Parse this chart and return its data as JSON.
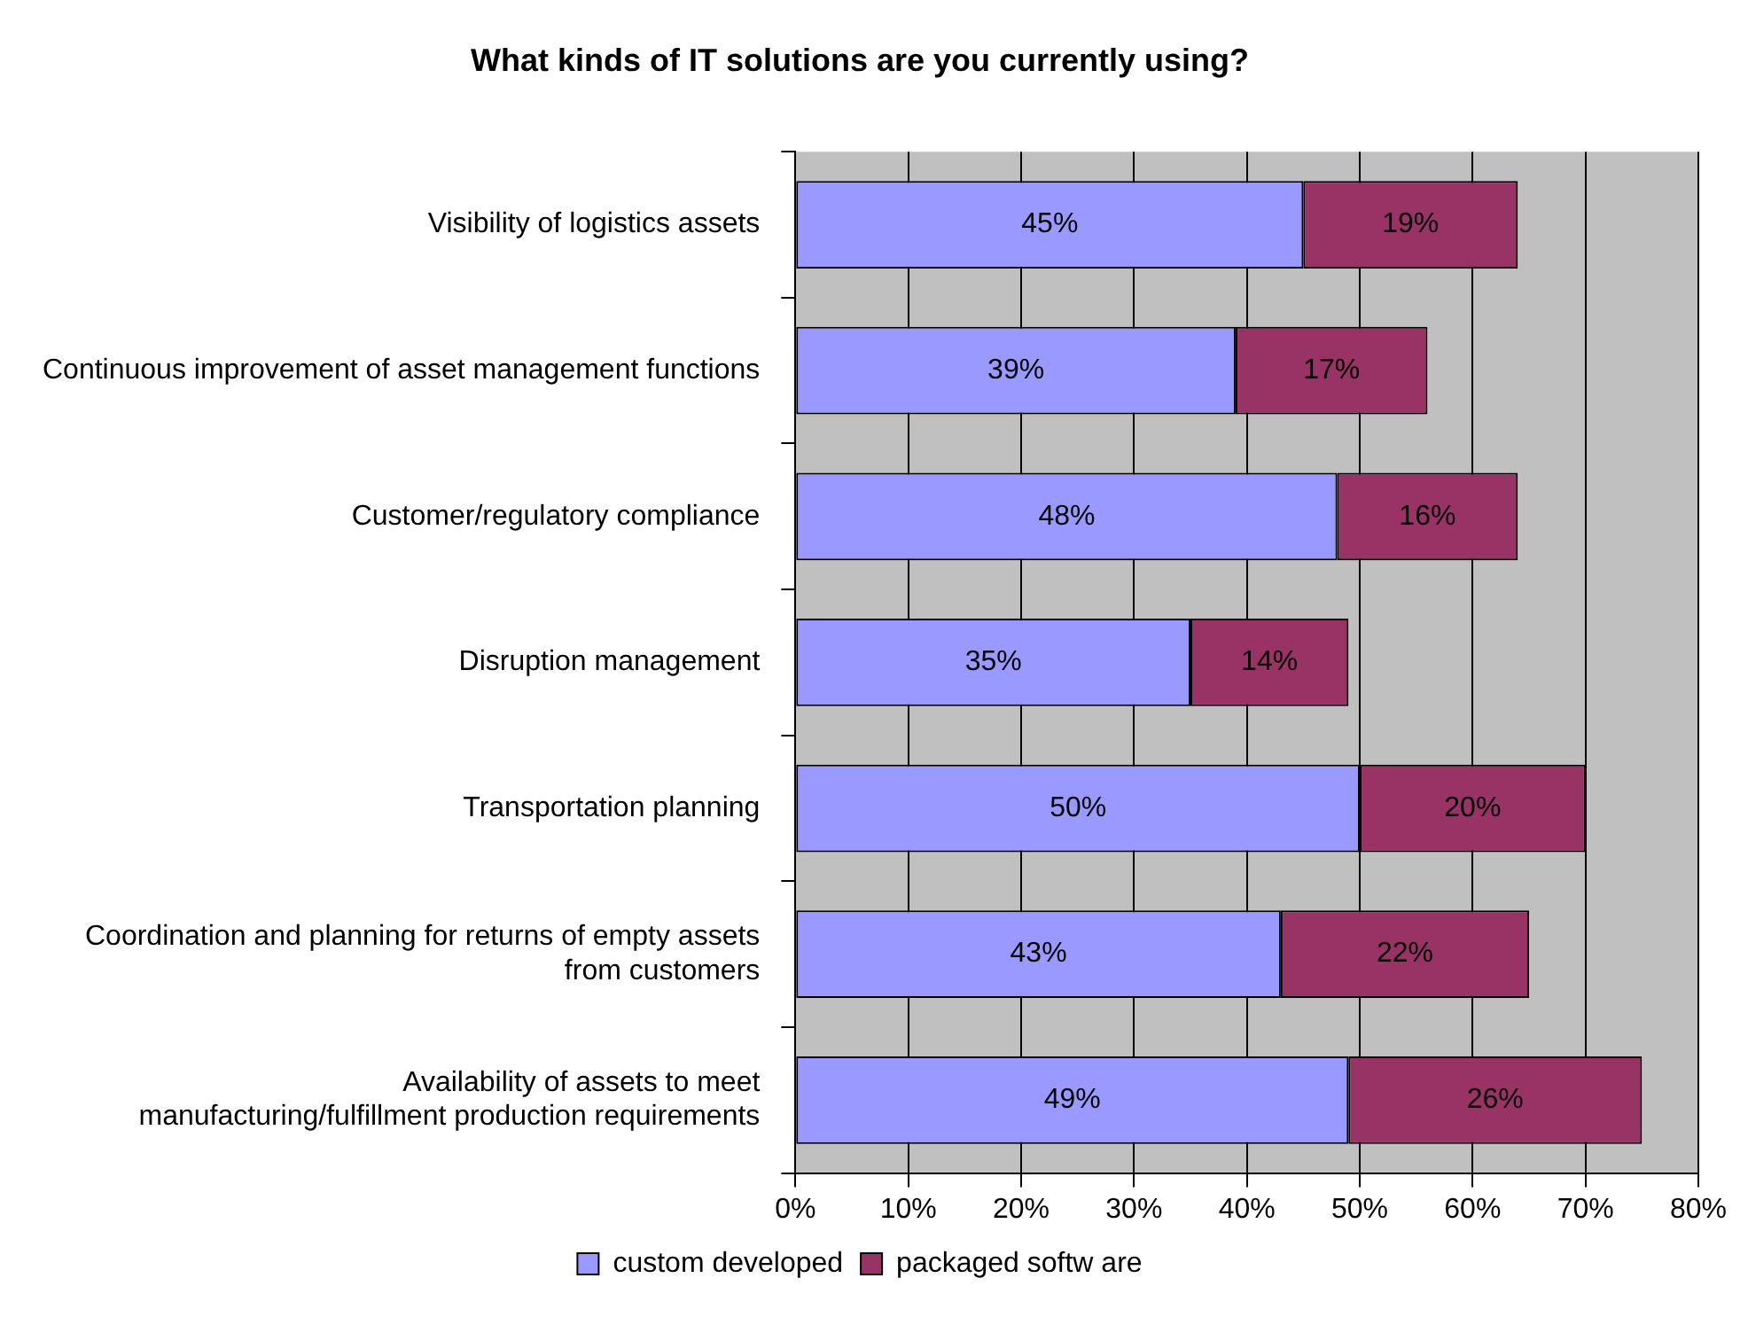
{
  "chart_data": {
    "type": "bar",
    "orientation": "horizontal",
    "stacked": true,
    "title": "What kinds of IT solutions are you currently using?",
    "categories": [
      "Visibility of logistics assets",
      "Continuous improvement of asset management functions",
      "Customer/regulatory compliance",
      "Disruption management",
      "Transportation planning",
      "Coordination and planning for returns of empty assets from customers",
      "Availability of assets to meet manufacturing/fulfillment production requirements"
    ],
    "series": [
      {
        "name": "custom developed",
        "color": "#9999ff",
        "values": [
          45,
          39,
          48,
          35,
          50,
          43,
          49
        ],
        "value_labels": [
          "45%",
          "39%",
          "48%",
          "35%",
          "50%",
          "43%",
          "49%"
        ]
      },
      {
        "name": "packaged softw are",
        "color": "#993366",
        "values": [
          19,
          17,
          16,
          14,
          20,
          22,
          26
        ],
        "value_labels": [
          "19%",
          "17%",
          "16%",
          "14%",
          "20%",
          "22%",
          "26%"
        ]
      }
    ],
    "xlim": [
      0,
      80
    ],
    "xticks": [
      {
        "value": 0,
        "label": "0%"
      },
      {
        "value": 10,
        "label": "10%"
      },
      {
        "value": 20,
        "label": "20%"
      },
      {
        "value": 30,
        "label": "30%"
      },
      {
        "value": 40,
        "label": "40%"
      },
      {
        "value": 50,
        "label": "50%"
      },
      {
        "value": 60,
        "label": "60%"
      },
      {
        "value": 70,
        "label": "70%"
      },
      {
        "value": 80,
        "label": "80%"
      }
    ],
    "grid": "x",
    "legend": "bottom"
  }
}
